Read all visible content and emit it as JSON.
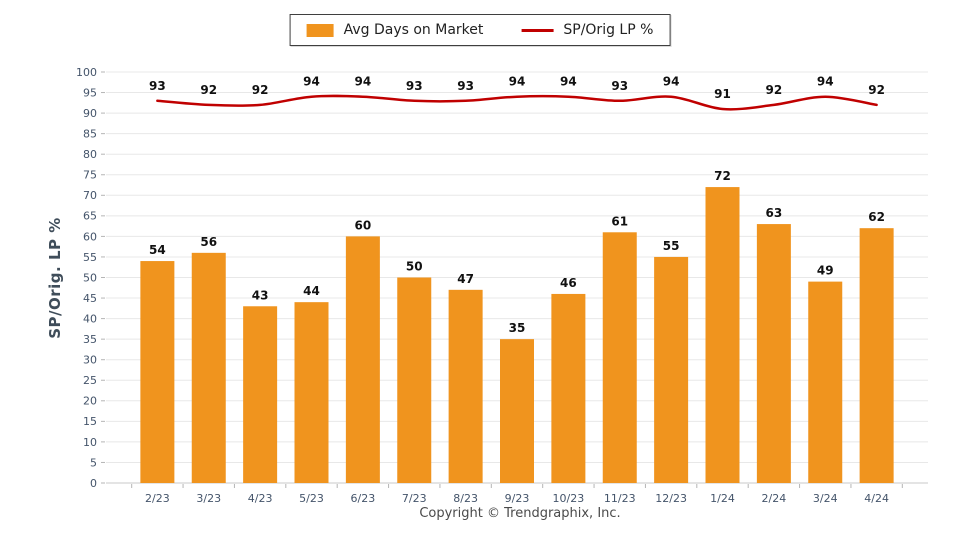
{
  "legend": {
    "bar_label": "Avg Days on Market",
    "line_label": "SP/Orig LP %"
  },
  "axis": {
    "y_title": "SP/Orig. LP %"
  },
  "footer": {
    "copyright": "Copyright © Trendgraphix, Inc."
  },
  "colors": {
    "bar": "#F0941E",
    "line": "#C00000",
    "grid": "#E8E8E8",
    "baseline": "#C9C9C9",
    "tick": "#B5B5B5",
    "axis_text": "#44546A",
    "value_label": "#111111"
  },
  "chart_data": {
    "type": "bar+line",
    "title": "",
    "xlabel": "",
    "ylabel": "SP/Orig. LP %",
    "ylim": [
      0,
      100
    ],
    "y_step": 5,
    "grid": true,
    "legend_position": "top-center",
    "categories": [
      "2/23",
      "3/23",
      "4/23",
      "5/23",
      "6/23",
      "7/23",
      "8/23",
      "9/23",
      "10/23",
      "11/23",
      "12/23",
      "1/24",
      "2/24",
      "3/24",
      "4/24"
    ],
    "series": [
      {
        "name": "Avg Days on Market",
        "type": "bar",
        "values": [
          54,
          56,
          43,
          44,
          60,
          50,
          47,
          35,
          46,
          61,
          55,
          72,
          63,
          49,
          62
        ]
      },
      {
        "name": "SP/Orig LP %",
        "type": "line",
        "values": [
          93,
          92,
          92,
          94,
          94,
          93,
          93,
          94,
          94,
          93,
          94,
          91,
          92,
          94,
          92
        ]
      }
    ]
  }
}
